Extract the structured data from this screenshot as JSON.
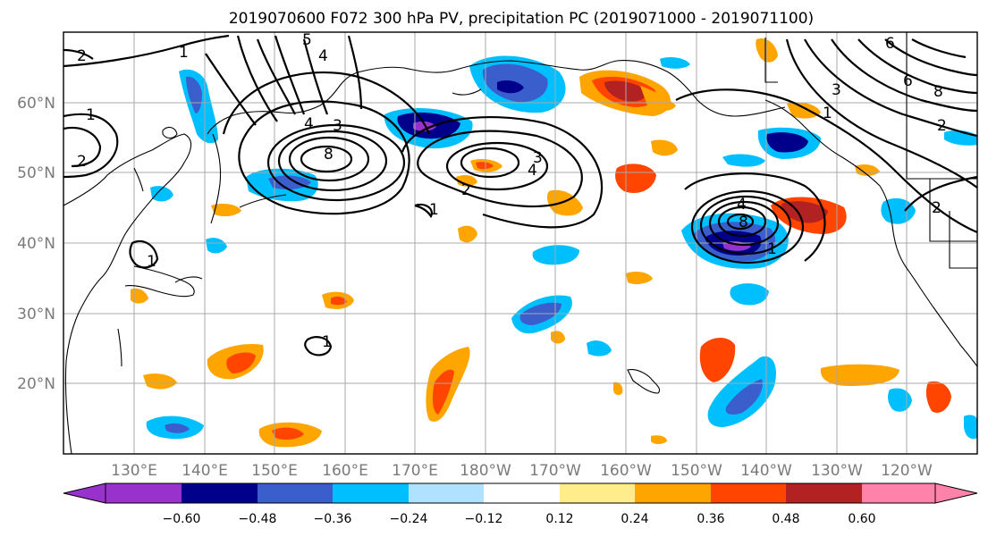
{
  "title": "2019070600 F072 300 hPa PV, precipitation PC (2019071000 - 2019071100)",
  "map": {
    "lat_labels": [
      "60°N",
      "50°N",
      "40°N",
      "30°N",
      "20°N"
    ],
    "lon_labels": [
      "130°E",
      "140°E",
      "150°E",
      "160°E",
      "170°E",
      "180°W",
      "170°W",
      "160°W",
      "150°W",
      "140°W",
      "130°W",
      "120°W"
    ],
    "lat_values": [
      60,
      50,
      40,
      30,
      20
    ],
    "lon_values": [
      130,
      140,
      150,
      160,
      170,
      180,
      190,
      200,
      210,
      220,
      230,
      240
    ],
    "lon_range": [
      120,
      250
    ],
    "lat_range": [
      10,
      70
    ],
    "contour_labels": [
      "1",
      "2",
      "3",
      "4",
      "5",
      "6",
      "8"
    ]
  },
  "colorbar": {
    "tick_labels": [
      "−0.60",
      "−0.48",
      "−0.36",
      "−0.24",
      "−0.12",
      "0.12",
      "0.24",
      "0.36",
      "0.48",
      "0.60"
    ],
    "levels": [
      -0.72,
      -0.6,
      -0.48,
      -0.36,
      -0.24,
      -0.12,
      0.12,
      0.24,
      0.36,
      0.48,
      0.6,
      0.72
    ],
    "colors": [
      "#9932cc",
      "#00008b",
      "#3a5fcd",
      "#00bfff",
      "#b0e2ff",
      "#ffffff",
      "#ffec8b",
      "#ffa500",
      "#ff4500",
      "#b22222",
      "#ff82ab"
    ]
  }
}
